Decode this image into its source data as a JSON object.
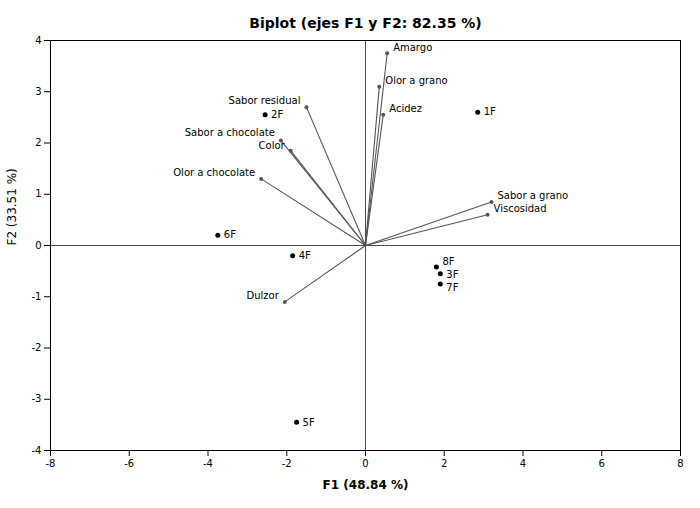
{
  "chart_data": {
    "type": "biplot",
    "title": "Biplot (ejes F1 y F2: 82.35 %)",
    "xlabel": "F1 (48.84 %)",
    "ylabel": "F2 (33.51 %)",
    "xlim": [
      -8,
      8
    ],
    "ylim": [
      -4,
      4
    ],
    "xticks": [
      -8,
      -6,
      -4,
      -2,
      0,
      2,
      4,
      6,
      8
    ],
    "yticks": [
      -4,
      -3,
      -2,
      -1,
      0,
      1,
      2,
      3,
      4
    ],
    "grid": false,
    "samples": {
      "color": "#000000",
      "labels": [
        "1F",
        "2F",
        "3F",
        "4F",
        "5F",
        "6F",
        "7F",
        "8F"
      ],
      "x": [
        2.85,
        -2.55,
        1.9,
        -1.85,
        -1.75,
        -3.75,
        1.9,
        1.8
      ],
      "y": [
        2.6,
        2.55,
        -0.55,
        -0.2,
        -3.45,
        0.2,
        -0.75,
        -0.42
      ]
    },
    "variables": {
      "color": "#555555",
      "labels": [
        "Amargo",
        "Olor a grano",
        "Acidez",
        "Sabor residual",
        "Color",
        "Sabor a chocolate",
        "Olor a chocolate",
        "Sabor a grano",
        "Viscosidad",
        "Dulzor"
      ],
      "x": [
        0.55,
        0.35,
        0.45,
        -1.5,
        -1.9,
        -2.15,
        -2.65,
        3.2,
        3.1,
        -2.05
      ],
      "y": [
        3.75,
        3.1,
        2.55,
        2.7,
        1.85,
        2.05,
        1.3,
        0.85,
        0.6,
        -1.1
      ]
    }
  }
}
